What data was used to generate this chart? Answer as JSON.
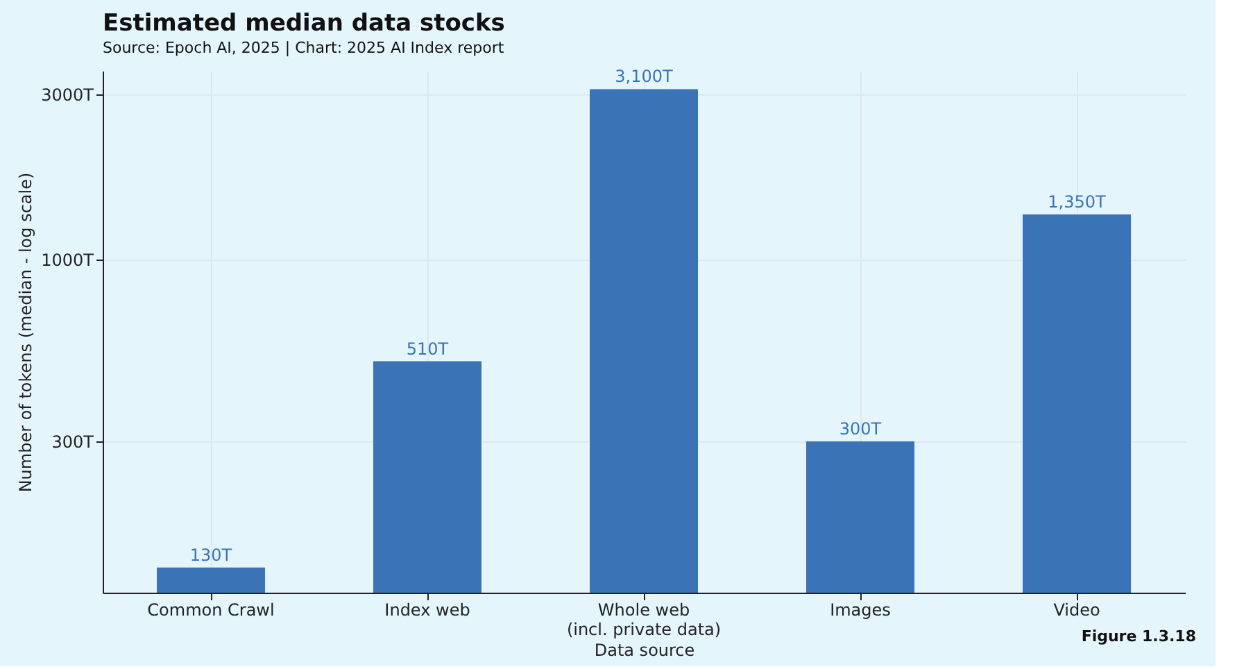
{
  "chart_data": {
    "type": "bar",
    "title": "Estimated median data stocks",
    "subtitle": "Source: Epoch AI, 2025 | Chart: 2025 AI Index report",
    "xlabel": "Data source",
    "ylabel": "Number of tokens (median - log scale)",
    "categories": [
      "Common Crawl",
      "Index web",
      "Whole web\n(incl. private data)",
      "Images",
      "Video"
    ],
    "values": [
      130,
      510,
      3100,
      300,
      1350
    ],
    "value_labels": [
      "130T",
      "510T",
      "3,100T",
      "300T",
      "1,350T"
    ],
    "color": "#3a74b6",
    "log": true,
    "ylim": [
      110,
      3500
    ],
    "yticks": [
      {
        "value": 300,
        "label": "300T"
      },
      {
        "value": 1000,
        "label": "1000T"
      },
      {
        "value": 3000,
        "label": "3000T"
      }
    ],
    "grid": true,
    "annotations": [
      "Figure 1.3.18"
    ]
  }
}
